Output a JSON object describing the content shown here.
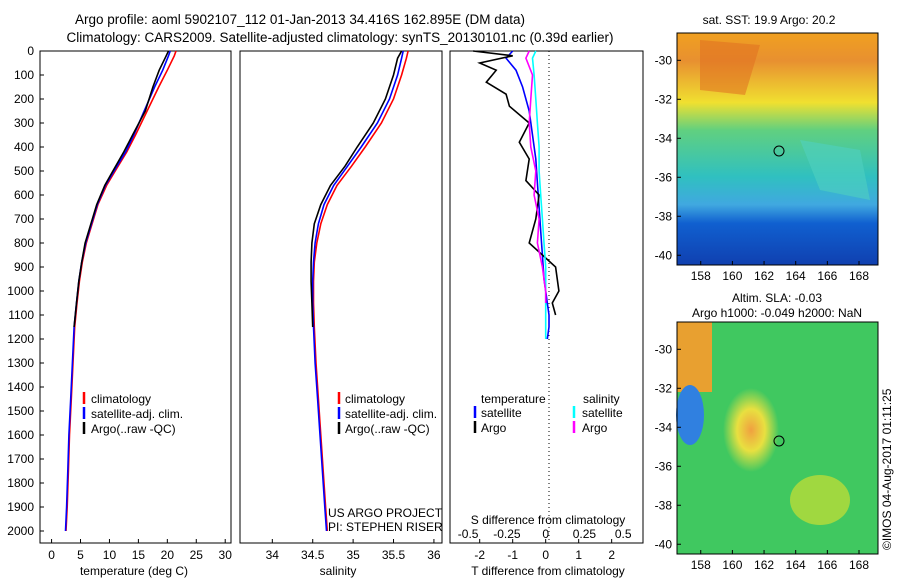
{
  "title_line1": "Argo profile: aoml 5902107_112 01-Jan-2013 34.416S 162.895E (DM data)",
  "title_line2": "Climatology: CARS2009. Satellite-adjusted climatology: synTS_20130101.nc (0.39d earlier)",
  "colors": {
    "climatology": "#ff0000",
    "satellite": "#0000ff",
    "argo": "#000000",
    "salinity_satellite": "#00ffff",
    "salinity_argo": "#ff00ff"
  },
  "depth_axis": {
    "ylim": [
      0,
      2050
    ],
    "ticks": [
      "0",
      "100",
      "200",
      "300",
      "400",
      "500",
      "600",
      "700",
      "800",
      "900",
      "1000",
      "1100",
      "1200",
      "1300",
      "1400",
      "1500",
      "1600",
      "1700",
      "1800",
      "1900",
      "2000"
    ]
  },
  "temperature_panel": {
    "xlabel": "temperature (deg C)",
    "xlim": [
      -2,
      31
    ],
    "ticks": [
      "0",
      "5",
      "10",
      "15",
      "20",
      "25",
      "30"
    ],
    "legend": [
      "climatology",
      "satellite-adj. clim.",
      "Argo(..raw -QC)"
    ]
  },
  "salinity_panel": {
    "xlabel": "salinity",
    "xlim": [
      33.6,
      36.1
    ],
    "ticks": [
      "34",
      "34.5",
      "35",
      "35.5",
      "36"
    ],
    "legend": [
      "climatology",
      "satellite-adj. clim.",
      "Argo(..raw -QC)"
    ],
    "credit1": "US ARGO PROJECT",
    "credit2": "PI: STEPHEN RISER"
  },
  "difference_panel": {
    "top_axis_label": "S difference from climatology",
    "top_ticks": [
      "-0.5",
      "-0.25",
      "0",
      "0.25",
      "0.5"
    ],
    "xlabel": "T difference from climatology",
    "xlim": [
      -2.9,
      2.95
    ],
    "ticks": [
      "-2",
      "-1",
      "0",
      "1",
      "2"
    ],
    "legend_temperature_header": "temperature",
    "legend_salinity_header": "salinity",
    "legend_temperature": [
      "satellite",
      "Argo"
    ],
    "legend_salinity": [
      "satellite",
      "Argo"
    ]
  },
  "sst_map": {
    "title": "sat. SST: 19.9 Argo: 20.2",
    "yticks": [
      "-30",
      "-32",
      "-34",
      "-36",
      "-38",
      "-40"
    ],
    "xticks": [
      "158",
      "160",
      "162",
      "164",
      "166",
      "168"
    ]
  },
  "sla_map": {
    "title_line1": "Altim. SLA: -0.03",
    "title_line2": "Argo h1000: -0.049 h2000: NaN",
    "yticks": [
      "-30",
      "-32",
      "-34",
      "-36",
      "-38",
      "-40"
    ],
    "xticks": [
      "158",
      "160",
      "162",
      "164",
      "166",
      "168"
    ]
  },
  "footer_stamp": "©IMOS 04-Aug-2017 01:11:25",
  "chart_data": [
    {
      "type": "line",
      "panel": "temperature",
      "xlabel": "temperature (deg C)",
      "ylabel": "",
      "xlim": [
        -2,
        31
      ],
      "ylim": [
        2050,
        0
      ],
      "series": [
        {
          "name": "climatology",
          "color": "#ff0000",
          "x": [
            21.5,
            21.2,
            20.0,
            18.5,
            16.5,
            14.5,
            13.0,
            11.0,
            9.5,
            8.0,
            7.0,
            6.0,
            5.3,
            4.8,
            4.4,
            4.0,
            3.7,
            3.4,
            3.1,
            2.9,
            2.7,
            2.5
          ],
          "y": [
            0,
            20,
            80,
            150,
            250,
            350,
            420,
            500,
            560,
            640,
            720,
            800,
            880,
            960,
            1050,
            1150,
            1300,
            1450,
            1600,
            1750,
            1900,
            2000
          ]
        },
        {
          "name": "satellite-adj. clim.",
          "color": "#0000ff",
          "x": [
            20.5,
            20.2,
            19.2,
            17.8,
            16.0,
            14.2,
            12.8,
            10.8,
            9.3,
            7.9,
            6.9,
            5.9,
            5.2,
            4.7,
            4.3,
            3.9,
            3.6,
            3.3,
            3.0,
            2.8,
            2.6,
            2.4
          ],
          "y": [
            0,
            20,
            80,
            150,
            250,
            350,
            420,
            500,
            560,
            640,
            720,
            800,
            880,
            960,
            1050,
            1150,
            1300,
            1450,
            1600,
            1750,
            1900,
            2000
          ]
        },
        {
          "name": "Argo(..raw -QC)",
          "color": "#000000",
          "x": [
            20.2,
            19.8,
            18.6,
            17.5,
            16.2,
            14.0,
            12.5,
            10.6,
            9.2,
            7.8,
            6.8,
            5.8,
            5.2,
            4.7,
            4.3,
            3.9
          ],
          "y": [
            0,
            20,
            80,
            150,
            250,
            350,
            420,
            500,
            560,
            640,
            720,
            800,
            880,
            960,
            1050,
            1150
          ]
        }
      ]
    },
    {
      "type": "line",
      "panel": "salinity",
      "xlabel": "salinity",
      "ylabel": "",
      "xlim": [
        33.6,
        36.1
      ],
      "ylim": [
        2050,
        0
      ],
      "series": [
        {
          "name": "climatology",
          "color": "#ff0000",
          "x": [
            35.68,
            35.66,
            35.6,
            35.5,
            35.35,
            35.15,
            34.98,
            34.8,
            34.68,
            34.6,
            34.55,
            34.52,
            34.51,
            34.51,
            34.52,
            34.54,
            34.57,
            34.6,
            34.63,
            34.66,
            34.68
          ],
          "y": [
            0,
            30,
            100,
            200,
            300,
            400,
            480,
            560,
            640,
            720,
            800,
            880,
            960,
            1050,
            1150,
            1300,
            1450,
            1600,
            1750,
            1900,
            2000
          ]
        },
        {
          "name": "satellite-adj. clim.",
          "color": "#0000ff",
          "x": [
            35.62,
            35.6,
            35.55,
            35.45,
            35.3,
            35.1,
            34.93,
            34.76,
            34.64,
            34.57,
            34.53,
            34.51,
            34.5,
            34.5,
            34.51,
            34.53,
            34.56,
            34.59,
            34.62,
            34.65,
            34.67
          ],
          "y": [
            0,
            30,
            100,
            200,
            300,
            400,
            480,
            560,
            640,
            720,
            800,
            880,
            960,
            1050,
            1150,
            1300,
            1450,
            1600,
            1750,
            1900,
            2000
          ]
        },
        {
          "name": "Argo(..raw -QC)",
          "color": "#000000",
          "x": [
            35.6,
            35.55,
            35.5,
            35.4,
            35.25,
            35.05,
            34.9,
            34.72,
            34.6,
            34.52,
            34.49,
            34.48,
            34.48,
            34.49,
            34.5
          ],
          "y": [
            0,
            30,
            100,
            200,
            300,
            400,
            480,
            560,
            640,
            720,
            800,
            880,
            960,
            1050,
            1150
          ]
        }
      ]
    },
    {
      "type": "line",
      "panel": "difference",
      "xlabel": "T difference from climatology",
      "ylabel": "",
      "xlim": [
        -2.9,
        2.95
      ],
      "ylim": [
        2050,
        0
      ],
      "series": [
        {
          "name": "satellite",
          "group": "temperature",
          "color": "#0000ff",
          "x": [
            -1.0,
            -1.2,
            -0.9,
            -0.7,
            -0.5,
            -0.4,
            -0.3,
            -0.25,
            -0.2,
            -0.15,
            -0.1,
            -0.05,
            0.0,
            0.05,
            0.1,
            0.1,
            0.05
          ],
          "y": [
            0,
            30,
            80,
            150,
            250,
            350,
            450,
            550,
            650,
            750,
            850,
            950,
            1000,
            1050,
            1100,
            1150,
            1200
          ]
        },
        {
          "name": "Argo",
          "group": "temperature",
          "color": "#000000",
          "x": [
            -2.2,
            -1.0,
            -2.0,
            -1.5,
            -1.8,
            -1.2,
            -1.1,
            -0.5,
            -0.8,
            -0.5,
            -0.6,
            -0.2,
            -0.3,
            -0.5,
            0.3,
            0.4,
            0.2,
            0.3
          ],
          "y": [
            0,
            20,
            50,
            80,
            130,
            180,
            230,
            300,
            380,
            450,
            540,
            600,
            700,
            800,
            900,
            1000,
            1050,
            1100
          ]
        },
        {
          "name": "satellite",
          "group": "salinity",
          "color": "#00ffff",
          "x": [
            -0.3,
            -0.4,
            -0.35,
            -0.3,
            -0.25,
            -0.2,
            -0.2,
            -0.15,
            -0.1,
            -0.05,
            0.0,
            0.0,
            0.0,
            0.0
          ],
          "y": [
            0,
            30,
            100,
            200,
            300,
            400,
            500,
            600,
            700,
            800,
            900,
            1000,
            1100,
            1200
          ]
        },
        {
          "name": "Argo",
          "group": "salinity",
          "color": "#ff00ff",
          "x": [
            -0.5,
            -0.6,
            -0.4,
            -0.45,
            -0.5,
            -0.45,
            -0.3,
            -0.35,
            -0.2,
            -0.25,
            -0.1,
            -0.05,
            0.0,
            0.0
          ],
          "y": [
            0,
            30,
            100,
            200,
            300,
            400,
            500,
            600,
            700,
            800,
            900,
            950,
            1000,
            1050
          ]
        }
      ]
    },
    {
      "type": "heatmap",
      "panel": "sst_map",
      "title": "sat. SST: 19.9 Argo: 20.2",
      "xlim": [
        156.5,
        169.2
      ],
      "ylim": [
        -40.5,
        -28.6
      ],
      "marker": {
        "lon": 162.895,
        "lat": -34.416
      }
    },
    {
      "type": "heatmap",
      "panel": "sla_map",
      "title": "Altim. SLA: -0.03",
      "xlim": [
        156.5,
        169.2
      ],
      "ylim": [
        -40.5,
        -28.6
      ],
      "marker": {
        "lon": 162.895,
        "lat": -34.416
      }
    }
  ]
}
